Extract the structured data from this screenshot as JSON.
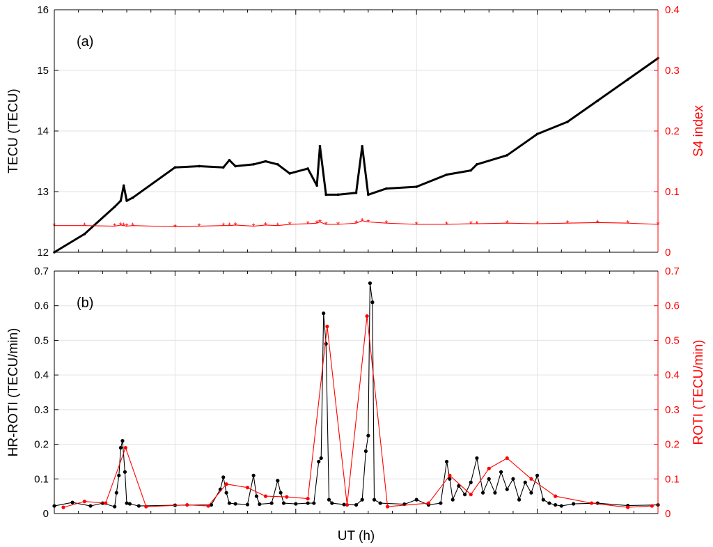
{
  "colors": {
    "primary": "#000000",
    "secondary": "#ff0000",
    "grid": "#e3e3e3"
  },
  "chart_data": [
    {
      "panel": "(a)",
      "type": "line",
      "xlabel": "",
      "ylabel_left": "TECU (TECU)",
      "ylabel_right": "S4 index",
      "ylim_left": [
        12,
        16
      ],
      "ylim_right": [
        0,
        0.4
      ],
      "yticks_left": [
        "12",
        "13",
        "14",
        "15",
        "16"
      ],
      "yticks_right": [
        "0",
        "0.1",
        "0.2",
        "0.3",
        "0.4"
      ],
      "grid": true,
      "x": [
        0,
        0.05,
        0.1,
        0.11,
        0.115,
        0.12,
        0.13,
        0.2,
        0.24,
        0.28,
        0.29,
        0.3,
        0.33,
        0.35,
        0.37,
        0.39,
        0.42,
        0.435,
        0.44,
        0.45,
        0.47,
        0.5,
        0.51,
        0.52,
        0.55,
        0.6,
        0.65,
        0.69,
        0.7,
        0.75,
        0.8,
        0.85,
        0.9,
        0.95,
        1
      ],
      "series": [
        {
          "axis": "left",
          "marker": "dot",
          "values": [
            12.0,
            12.3,
            12.75,
            12.85,
            13.1,
            12.85,
            12.9,
            13.4,
            13.42,
            13.4,
            13.52,
            13.42,
            13.45,
            13.5,
            13.45,
            13.3,
            13.38,
            13.1,
            13.75,
            12.95,
            12.95,
            12.98,
            13.75,
            12.95,
            13.05,
            13.08,
            13.28,
            13.35,
            13.45,
            13.6,
            13.95,
            14.15,
            14.5,
            14.85,
            15.2
          ]
        },
        {
          "axis": "right",
          "marker": "asterisk",
          "values": [
            0.044,
            0.044,
            0.043,
            0.045,
            0.044,
            0.043,
            0.044,
            0.042,
            0.043,
            0.044,
            0.044,
            0.045,
            0.043,
            0.045,
            0.044,
            0.046,
            0.047,
            0.048,
            0.05,
            0.046,
            0.046,
            0.048,
            0.052,
            0.05,
            0.048,
            0.046,
            0.046,
            0.047,
            0.047,
            0.048,
            0.047,
            0.048,
            0.049,
            0.048,
            0.046
          ]
        }
      ]
    },
    {
      "panel": "(b)",
      "type": "line",
      "xlabel": "UT (h)",
      "ylabel_left": "HR-ROTI (TECU/min)",
      "ylabel_right": "ROTI (TECU/min)",
      "ylim_left": [
        0,
        0.7
      ],
      "ylim_right": [
        0,
        0.7
      ],
      "yticks_left": [
        "0",
        "0.1",
        "0.2",
        "0.3",
        "0.4",
        "0.5",
        "0.6",
        "0.7"
      ],
      "yticks_right": [
        "0",
        "0.1",
        "0.2",
        "0.3",
        "0.4",
        "0.5",
        "0.6",
        "0.7"
      ],
      "grid": true,
      "series": [
        {
          "axis": "left",
          "marker": "dot",
          "x": [
            0,
            0.03,
            0.06,
            0.08,
            0.1,
            0.103,
            0.107,
            0.11,
            0.113,
            0.117,
            0.12,
            0.125,
            0.14,
            0.2,
            0.26,
            0.275,
            0.28,
            0.285,
            0.29,
            0.3,
            0.32,
            0.33,
            0.335,
            0.34,
            0.36,
            0.37,
            0.375,
            0.38,
            0.4,
            0.42,
            0.43,
            0.438,
            0.442,
            0.446,
            0.45,
            0.455,
            0.46,
            0.48,
            0.5,
            0.51,
            0.516,
            0.52,
            0.523,
            0.527,
            0.53,
            0.54,
            0.58,
            0.6,
            0.62,
            0.64,
            0.65,
            0.655,
            0.66,
            0.67,
            0.68,
            0.69,
            0.7,
            0.71,
            0.72,
            0.73,
            0.74,
            0.75,
            0.76,
            0.77,
            0.78,
            0.79,
            0.8,
            0.81,
            0.82,
            0.83,
            0.84,
            0.86,
            0.9,
            0.95,
            1
          ],
          "values": [
            0.022,
            0.032,
            0.022,
            0.03,
            0.02,
            0.06,
            0.11,
            0.19,
            0.21,
            0.12,
            0.03,
            0.028,
            0.022,
            0.024,
            0.025,
            0.07,
            0.105,
            0.06,
            0.03,
            0.028,
            0.026,
            0.11,
            0.05,
            0.027,
            0.03,
            0.095,
            0.06,
            0.03,
            0.028,
            0.03,
            0.03,
            0.15,
            0.16,
            0.578,
            0.49,
            0.04,
            0.03,
            0.026,
            0.025,
            0.04,
            0.18,
            0.225,
            0.665,
            0.61,
            0.04,
            0.03,
            0.027,
            0.04,
            0.025,
            0.03,
            0.15,
            0.1,
            0.04,
            0.08,
            0.055,
            0.09,
            0.16,
            0.06,
            0.1,
            0.06,
            0.12,
            0.07,
            0.1,
            0.04,
            0.09,
            0.06,
            0.11,
            0.04,
            0.03,
            0.025,
            0.022,
            0.028,
            0.03,
            0.023,
            0.025
          ]
        },
        {
          "axis": "right",
          "marker": "dot",
          "x": [
            0.015,
            0.05,
            0.085,
            0.118,
            0.152,
            0.22,
            0.255,
            0.285,
            0.32,
            0.35,
            0.385,
            0.42,
            0.452,
            0.485,
            0.518,
            0.552,
            0.62,
            0.655,
            0.69,
            0.72,
            0.75,
            0.79,
            0.83,
            0.89,
            0.95,
            0.99
          ],
          "values": [
            0.018,
            0.035,
            0.03,
            0.19,
            0.02,
            0.025,
            0.022,
            0.085,
            0.075,
            0.05,
            0.048,
            0.043,
            0.54,
            0.025,
            0.57,
            0.02,
            0.03,
            0.11,
            0.055,
            0.13,
            0.16,
            0.1,
            0.05,
            0.03,
            0.018,
            0.022
          ]
        }
      ]
    }
  ]
}
